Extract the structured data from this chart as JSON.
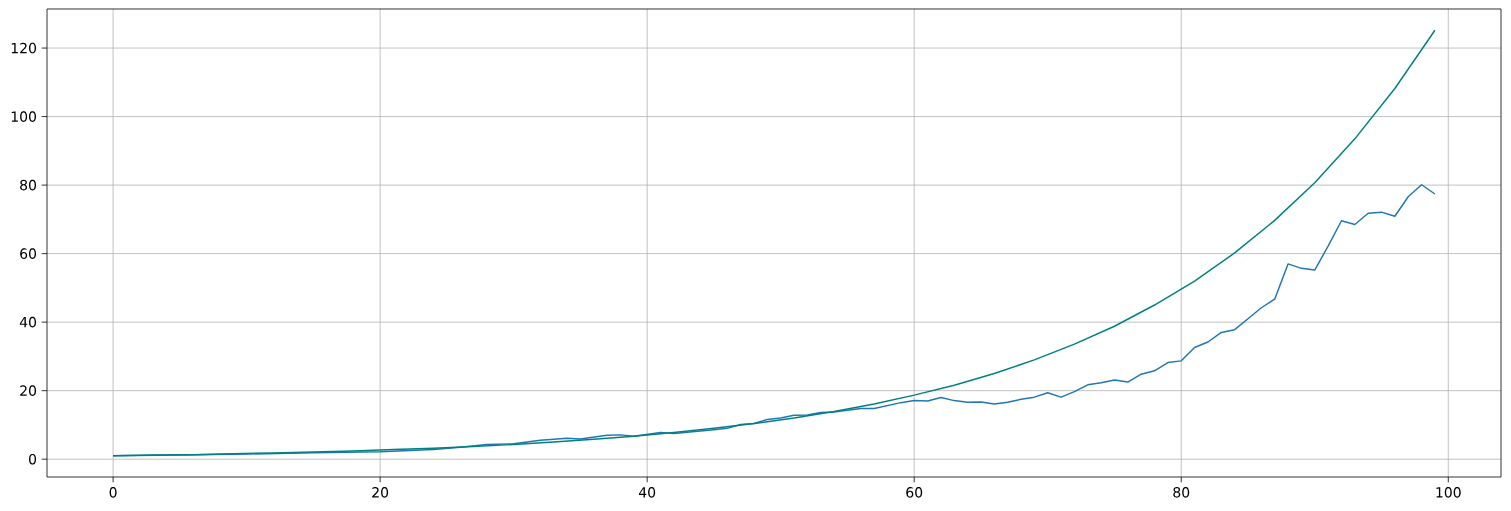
{
  "chart_data": {
    "type": "line",
    "xlim": [
      -4.95,
      103.95
    ],
    "ylim": [
      -5.2,
      131.4
    ],
    "xticks": [
      0,
      20,
      40,
      60,
      80,
      100
    ],
    "yticks": [
      0,
      20,
      40,
      60,
      80,
      100,
      120
    ],
    "grid": true,
    "series": [
      {
        "color": "#1f77b4",
        "x": [
          0,
          5,
          10,
          15,
          20,
          24,
          26,
          28,
          30,
          32,
          34,
          35,
          37,
          38,
          39,
          41,
          42,
          45,
          46,
          47,
          48,
          49,
          50,
          51,
          52,
          53,
          54,
          56,
          57,
          59,
          60,
          61,
          62,
          63,
          64,
          65,
          66,
          67,
          68,
          69,
          70,
          71,
          72,
          73,
          74,
          75,
          76,
          77,
          78,
          79,
          80,
          81,
          82,
          83,
          84,
          85,
          86,
          87,
          88,
          89,
          90,
          91,
          92,
          93,
          94,
          95,
          96,
          97,
          98,
          99
        ],
        "values": [
          1,
          1.2,
          1.5,
          1.9,
          2.2,
          2.8,
          3.5,
          4.3,
          4.5,
          5.5,
          6.1,
          5.9,
          7,
          7.1,
          6.7,
          7.8,
          7.5,
          8.6,
          9,
          10.1,
          10.4,
          11.6,
          12,
          12.8,
          12.9,
          13.6,
          13.8,
          14.8,
          14.8,
          16.5,
          17.1,
          17,
          18,
          17.1,
          16.6,
          16.7,
          16.1,
          16.6,
          17.5,
          18.1,
          19.4,
          18.1,
          19.7,
          21.7,
          22.3,
          23.1,
          22.5,
          24.8,
          25.8,
          28.2,
          28.7,
          32.6,
          34.2,
          37,
          37.8,
          41,
          44.2,
          46.7,
          57,
          55.7,
          55.2,
          62.2,
          69.6,
          68.5,
          71.8,
          72.1,
          70.9,
          76.6,
          80.1,
          77.4
        ]
      },
      {
        "color": "#008080",
        "x": [
          0,
          3,
          6,
          9,
          12,
          15,
          18,
          21,
          24,
          27,
          30,
          33,
          36,
          39,
          42,
          45,
          48,
          51,
          54,
          57,
          60,
          63,
          66,
          69,
          72,
          75,
          78,
          81,
          84,
          87,
          90,
          93,
          96,
          99
        ],
        "values": [
          1,
          1.2,
          1.3,
          1.6,
          1.8,
          2.1,
          2.4,
          2.8,
          3.2,
          3.7,
          4.3,
          5,
          5.8,
          6.7,
          7.8,
          9,
          10.4,
          12,
          13.9,
          16.1,
          18.7,
          21.6,
          25,
          29,
          33.6,
          38.8,
          45,
          52,
          60.2,
          69.7,
          80.7,
          93.5,
          108.2,
          125.2
        ]
      }
    ]
  }
}
